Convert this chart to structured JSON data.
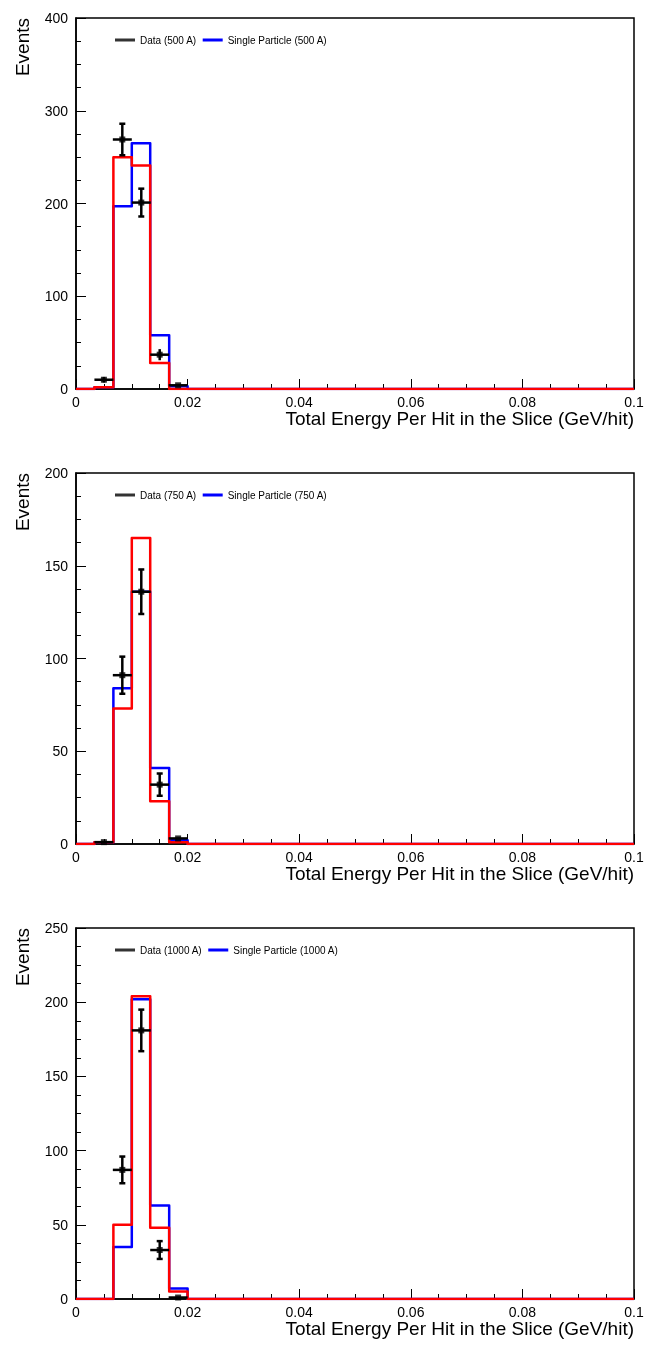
{
  "chart_data": [
    {
      "type": "histogram",
      "xlabel": "Total Energy Per Hit in the Slice (GeV/hit)",
      "ylabel": "Events",
      "bins": [
        0,
        0.0033,
        0.0067,
        0.01,
        0.0133,
        0.0167,
        0.02,
        0.1
      ],
      "xlim": [
        0,
        0.1
      ],
      "xticks": [
        0,
        0.02,
        0.04,
        0.06,
        0.08,
        0.1
      ],
      "ylim": [
        0,
        400
      ],
      "yticks": [
        0,
        100,
        200,
        300,
        400
      ],
      "grid": false,
      "legend": "top left",
      "series": [
        {
          "type": "scatter",
          "name": "Data (500 A)",
          "color": "#000000",
          "x": [
            0.005,
            0.0083,
            0.0117,
            0.015,
            0.0183
          ],
          "values": [
            10,
            269,
            201,
            37,
            4
          ],
          "errors": [
            3,
            17,
            15,
            6,
            null
          ],
          "xerrors": [
            0.0017,
            0.0017,
            0.0017,
            0.0017,
            0.0017
          ]
        },
        {
          "name": "Single Particle (500 A)",
          "color": "#0000ff",
          "values": [
            0,
            2,
            197,
            265,
            58,
            3,
            0
          ]
        },
        {
          "color": "#ff0000",
          "values": [
            0,
            2,
            250,
            241,
            28,
            0,
            0
          ]
        }
      ]
    },
    {
      "type": "histogram",
      "xlabel": "Total Energy Per Hit in the Slice (GeV/hit)",
      "ylabel": "Events",
      "bins": [
        0,
        0.0033,
        0.0067,
        0.01,
        0.0133,
        0.0167,
        0.02,
        0.1
      ],
      "xlim": [
        0,
        0.1
      ],
      "xticks": [
        0,
        0.02,
        0.04,
        0.06,
        0.08,
        0.1
      ],
      "ylim": [
        0,
        200
      ],
      "yticks": [
        0,
        50,
        100,
        150,
        200
      ],
      "grid": false,
      "legend": "top left",
      "series": [
        {
          "type": "scatter",
          "name": "Data (750 A)",
          "color": "#000000",
          "x": [
            0.005,
            0.0083,
            0.0117,
            0.015,
            0.0183
          ],
          "values": [
            1,
            91,
            136,
            32,
            3
          ],
          "errors": [
            null,
            10,
            12,
            6,
            null
          ],
          "xerrors": [
            0.0017,
            0.0017,
            0.0017,
            0.0017,
            0.0017
          ]
        },
        {
          "name": "Single Particle (750 A)",
          "color": "#0000ff",
          "values": [
            0,
            1,
            84,
            136,
            41,
            2,
            0
          ]
        },
        {
          "color": "#ff0000",
          "values": [
            0,
            1,
            73,
            165,
            23,
            1,
            0
          ]
        }
      ]
    },
    {
      "type": "histogram",
      "xlabel": "Total Energy Per Hit in the Slice (GeV/hit)",
      "ylabel": "Events",
      "bins": [
        0,
        0.0033,
        0.0067,
        0.01,
        0.0133,
        0.0167,
        0.02,
        0.1
      ],
      "xlim": [
        0,
        0.1
      ],
      "xticks": [
        0,
        0.02,
        0.04,
        0.06,
        0.08,
        0.1
      ],
      "ylim": [
        0,
        250
      ],
      "yticks": [
        0,
        50,
        100,
        150,
        200,
        250
      ],
      "grid": false,
      "legend": "top left",
      "series": [
        {
          "type": "scatter",
          "name": "Data (1000 A)",
          "color": "#000000",
          "x": [
            0.0083,
            0.0117,
            0.015,
            0.0183
          ],
          "values": [
            87,
            181,
            33,
            1
          ],
          "errors": [
            9,
            14,
            6,
            null
          ],
          "xerrors": [
            0.0017,
            0.0017,
            0.0017,
            0.0017
          ]
        },
        {
          "name": "Single Particle (1000 A)",
          "color": "#0000ff",
          "values": [
            0,
            0,
            35,
            202,
            63,
            7,
            0
          ]
        },
        {
          "color": "#ff0000",
          "values": [
            0,
            0,
            50,
            204,
            48,
            5,
            0
          ]
        }
      ]
    }
  ]
}
